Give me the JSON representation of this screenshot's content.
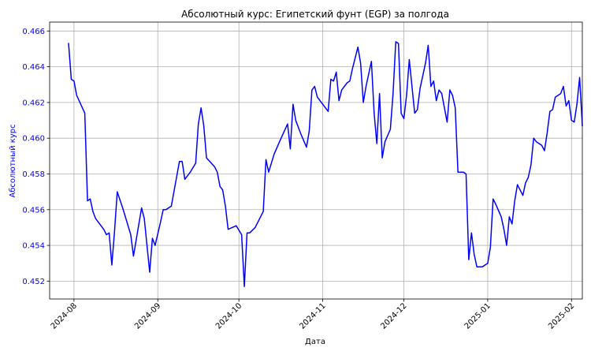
{
  "chart_data": {
    "type": "line",
    "title": "Абсолютный курс: Египетский фунт (EGP) за полгода",
    "xlabel": "Дата",
    "ylabel": "Абсолютный курс",
    "grid": true,
    "ylim": [
      0.451,
      0.4665
    ],
    "y_ticks": [
      0.452,
      0.454,
      0.456,
      0.458,
      0.46,
      0.462,
      0.464,
      0.466
    ],
    "y_tick_labels": [
      "0.452",
      "0.454",
      "0.456",
      "0.458",
      "0.460",
      "0.462",
      "0.464",
      "0.466"
    ],
    "x_start": "2024-07-23",
    "x_end": "2025-02-05",
    "x_ticks": [
      "2024-08-01",
      "2024-09-01",
      "2024-10-01",
      "2024-11-01",
      "2024-12-01",
      "2025-01-01",
      "2025-02-01"
    ],
    "x_tick_labels": [
      "2024-08",
      "2024-09",
      "2024-10",
      "2024-11",
      "2024-12",
      "2025-01",
      "2025-02"
    ],
    "line_color": "#0000ff",
    "ylabel_color": "#0000ff",
    "series": [
      {
        "name": "EGP",
        "points": [
          [
            "2024-07-30",
            0.4653
          ],
          [
            "2024-07-31",
            0.4633
          ],
          [
            "2024-08-01",
            0.4632
          ],
          [
            "2024-08-02",
            0.4624
          ],
          [
            "2024-08-05",
            0.4614
          ],
          [
            "2024-08-06",
            0.4565
          ],
          [
            "2024-08-07",
            0.4566
          ],
          [
            "2024-08-08",
            0.4559
          ],
          [
            "2024-08-09",
            0.4555
          ],
          [
            "2024-08-12",
            0.4549
          ],
          [
            "2024-08-13",
            0.4546
          ],
          [
            "2024-08-14",
            0.4547
          ],
          [
            "2024-08-15",
            0.4529
          ],
          [
            "2024-08-16",
            0.4548
          ],
          [
            "2024-08-17",
            0.457
          ],
          [
            "2024-08-19",
            0.4561
          ],
          [
            "2024-08-20",
            0.4556
          ],
          [
            "2024-08-22",
            0.4546
          ],
          [
            "2024-08-23",
            0.4534
          ],
          [
            "2024-08-26",
            0.4561
          ],
          [
            "2024-08-27",
            0.4555
          ],
          [
            "2024-08-29",
            0.4525
          ],
          [
            "2024-08-30",
            0.4544
          ],
          [
            "2024-08-31",
            0.454
          ],
          [
            "2024-09-02",
            0.4553
          ],
          [
            "2024-09-03",
            0.456
          ],
          [
            "2024-09-04",
            0.456
          ],
          [
            "2024-09-06",
            0.4562
          ],
          [
            "2024-09-09",
            0.4587
          ],
          [
            "2024-09-10",
            0.4587
          ],
          [
            "2024-09-11",
            0.4577
          ],
          [
            "2024-09-13",
            0.4581
          ],
          [
            "2024-09-15",
            0.4586
          ],
          [
            "2024-09-16",
            0.4608
          ],
          [
            "2024-09-17",
            0.4617
          ],
          [
            "2024-09-18",
            0.4607
          ],
          [
            "2024-09-19",
            0.4589
          ],
          [
            "2024-09-22",
            0.4584
          ],
          [
            "2024-09-23",
            0.4581
          ],
          [
            "2024-09-24",
            0.4573
          ],
          [
            "2024-09-25",
            0.4571
          ],
          [
            "2024-09-26",
            0.4562
          ],
          [
            "2024-09-27",
            0.4549
          ],
          [
            "2024-09-30",
            0.4551
          ],
          [
            "2024-10-02",
            0.4546
          ],
          [
            "2024-10-03",
            0.4517
          ],
          [
            "2024-10-04",
            0.4547
          ],
          [
            "2024-10-05",
            0.4547
          ],
          [
            "2024-10-07",
            0.455
          ],
          [
            "2024-10-09",
            0.4556
          ],
          [
            "2024-10-10",
            0.4559
          ],
          [
            "2024-10-11",
            0.4588
          ],
          [
            "2024-10-12",
            0.4581
          ],
          [
            "2024-10-14",
            0.4591
          ],
          [
            "2024-10-16",
            0.4598
          ],
          [
            "2024-10-19",
            0.4608
          ],
          [
            "2024-10-20",
            0.4594
          ],
          [
            "2024-10-21",
            0.4619
          ],
          [
            "2024-10-22",
            0.461
          ],
          [
            "2024-10-24",
            0.4602
          ],
          [
            "2024-10-26",
            0.4595
          ],
          [
            "2024-10-27",
            0.4604
          ],
          [
            "2024-10-28",
            0.4627
          ],
          [
            "2024-10-29",
            0.4629
          ],
          [
            "2024-10-30",
            0.4623
          ],
          [
            "2024-11-01",
            0.4619
          ],
          [
            "2024-11-03",
            0.4615
          ],
          [
            "2024-11-04",
            0.4633
          ],
          [
            "2024-11-05",
            0.4632
          ],
          [
            "2024-11-06",
            0.4637
          ],
          [
            "2024-11-07",
            0.4621
          ],
          [
            "2024-11-08",
            0.4627
          ],
          [
            "2024-11-10",
            0.4631
          ],
          [
            "2024-11-11",
            0.4632
          ],
          [
            "2024-11-12",
            0.4639
          ],
          [
            "2024-11-14",
            0.4651
          ],
          [
            "2024-11-15",
            0.4642
          ],
          [
            "2024-11-16",
            0.462
          ],
          [
            "2024-11-17",
            0.4629
          ],
          [
            "2024-11-19",
            0.4643
          ],
          [
            "2024-11-20",
            0.4614
          ],
          [
            "2024-11-21",
            0.4597
          ],
          [
            "2024-11-22",
            0.4625
          ],
          [
            "2024-11-23",
            0.4589
          ],
          [
            "2024-11-24",
            0.4598
          ],
          [
            "2024-11-26",
            0.4605
          ],
          [
            "2024-11-27",
            0.4625
          ],
          [
            "2024-11-28",
            0.4654
          ],
          [
            "2024-11-29",
            0.4653
          ],
          [
            "2024-11-30",
            0.4614
          ],
          [
            "2024-12-01",
            0.4611
          ],
          [
            "2024-12-02",
            0.4624
          ],
          [
            "2024-12-03",
            0.4644
          ],
          [
            "2024-12-05",
            0.4614
          ],
          [
            "2024-12-06",
            0.4616
          ],
          [
            "2024-12-07",
            0.4628
          ],
          [
            "2024-12-09",
            0.4642
          ],
          [
            "2024-12-10",
            0.4652
          ],
          [
            "2024-12-11",
            0.4629
          ],
          [
            "2024-12-12",
            0.4632
          ],
          [
            "2024-12-13",
            0.4621
          ],
          [
            "2024-12-14",
            0.4627
          ],
          [
            "2024-12-15",
            0.4625
          ],
          [
            "2024-12-17",
            0.4609
          ],
          [
            "2024-12-18",
            0.4627
          ],
          [
            "2024-12-19",
            0.4624
          ],
          [
            "2024-12-20",
            0.4617
          ],
          [
            "2024-12-21",
            0.4581
          ],
          [
            "2024-12-23",
            0.4581
          ],
          [
            "2024-12-24",
            0.458
          ],
          [
            "2024-12-25",
            0.4532
          ],
          [
            "2024-12-26",
            0.4547
          ],
          [
            "2024-12-27",
            0.4535
          ],
          [
            "2024-12-28",
            0.4528
          ],
          [
            "2024-12-30",
            0.4528
          ],
          [
            "2024-12-31",
            0.4529
          ],
          [
            "2025-01-01",
            0.453
          ],
          [
            "2025-01-02",
            0.4539
          ],
          [
            "2025-01-03",
            0.4566
          ],
          [
            "2025-01-04",
            0.4563
          ],
          [
            "2025-01-06",
            0.4556
          ],
          [
            "2025-01-07",
            0.4549
          ],
          [
            "2025-01-08",
            0.454
          ],
          [
            "2025-01-09",
            0.4556
          ],
          [
            "2025-01-10",
            0.4552
          ],
          [
            "2025-01-11",
            0.4565
          ],
          [
            "2025-01-12",
            0.4574
          ],
          [
            "2025-01-14",
            0.4568
          ],
          [
            "2025-01-15",
            0.4575
          ],
          [
            "2025-01-16",
            0.4578
          ],
          [
            "2025-01-17",
            0.4585
          ],
          [
            "2025-01-18",
            0.46
          ],
          [
            "2025-01-19",
            0.4598
          ],
          [
            "2025-01-21",
            0.4596
          ],
          [
            "2025-01-22",
            0.4593
          ],
          [
            "2025-01-23",
            0.4603
          ],
          [
            "2025-01-24",
            0.4615
          ],
          [
            "2025-01-25",
            0.4616
          ],
          [
            "2025-01-26",
            0.4623
          ],
          [
            "2025-01-28",
            0.4625
          ],
          [
            "2025-01-29",
            0.4629
          ],
          [
            "2025-01-30",
            0.4618
          ],
          [
            "2025-01-31",
            0.4621
          ],
          [
            "2025-02-01",
            0.461
          ],
          [
            "2025-02-02",
            0.4609
          ],
          [
            "2025-02-03",
            0.4619
          ],
          [
            "2025-02-04",
            0.4634
          ],
          [
            "2025-02-05",
            0.4607
          ]
        ]
      }
    ]
  }
}
